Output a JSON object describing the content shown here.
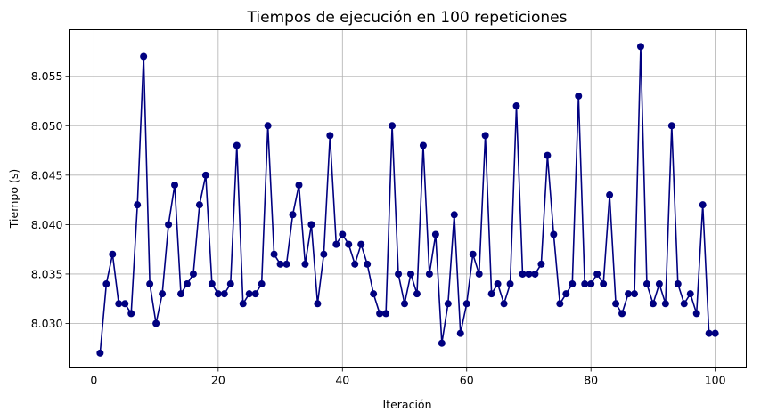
{
  "chart_data": {
    "type": "line",
    "title": "Tiempos de ejecución en 100 repeticiones",
    "xlabel": "Iteración",
    "ylabel": "Tiempo (s)",
    "xlim": [
      -4,
      105
    ],
    "ylim": [
      8.0255,
      8.0597
    ],
    "xticks": [
      0,
      20,
      40,
      60,
      80,
      100
    ],
    "xtick_labels": [
      "0",
      "20",
      "40",
      "60",
      "80",
      "100"
    ],
    "yticks": [
      8.03,
      8.035,
      8.04,
      8.045,
      8.05,
      8.055
    ],
    "ytick_labels": [
      "8.030",
      "8.035",
      "8.040",
      "8.045",
      "8.050",
      "8.055"
    ],
    "grid": true,
    "marker": "circle",
    "color": "#000080",
    "series": [
      {
        "x": [
          1,
          2,
          3,
          4,
          5,
          6,
          7,
          8,
          9,
          10,
          11,
          12,
          13,
          14,
          15,
          16,
          17,
          18,
          19,
          20,
          21,
          22,
          23,
          24,
          25,
          26,
          27,
          28,
          29,
          30,
          31,
          32,
          33,
          34,
          35,
          36,
          37,
          38,
          39,
          40,
          41,
          42,
          43,
          44,
          45,
          46,
          47,
          48,
          49,
          50,
          51,
          52,
          53,
          54,
          55,
          56,
          57,
          58,
          59,
          60,
          61,
          62,
          63,
          64,
          65,
          66,
          67,
          68,
          69,
          70,
          71,
          72,
          73,
          74,
          75,
          76,
          77,
          78,
          79,
          80,
          81,
          82,
          83,
          84,
          85,
          86,
          87,
          88,
          89,
          90,
          91,
          92,
          93,
          94,
          95,
          96,
          97,
          98,
          99,
          100
        ],
        "values": [
          8.027,
          8.034,
          8.037,
          8.032,
          8.032,
          8.031,
          8.042,
          8.057,
          8.034,
          8.03,
          8.033,
          8.04,
          8.044,
          8.033,
          8.034,
          8.035,
          8.042,
          8.045,
          8.034,
          8.033,
          8.033,
          8.034,
          8.048,
          8.032,
          8.033,
          8.033,
          8.034,
          8.05,
          8.037,
          8.036,
          8.036,
          8.041,
          8.044,
          8.036,
          8.04,
          8.032,
          8.037,
          8.049,
          8.038,
          8.039,
          8.038,
          8.036,
          8.038,
          8.036,
          8.033,
          8.031,
          8.031,
          8.05,
          8.035,
          8.032,
          8.035,
          8.033,
          8.048,
          8.035,
          8.039,
          8.028,
          8.032,
          8.041,
          8.029,
          8.032,
          8.037,
          8.035,
          8.049,
          8.033,
          8.034,
          8.032,
          8.034,
          8.052,
          8.035,
          8.035,
          8.035,
          8.036,
          8.047,
          8.039,
          8.032,
          8.033,
          8.034,
          8.053,
          8.034,
          8.034,
          8.035,
          8.034,
          8.043,
          8.032,
          8.031,
          8.033,
          8.033,
          8.058,
          8.034,
          8.032,
          8.034,
          8.032,
          8.05,
          8.034,
          8.032,
          8.033,
          8.031,
          8.042,
          8.029,
          8.029
        ]
      }
    ]
  }
}
